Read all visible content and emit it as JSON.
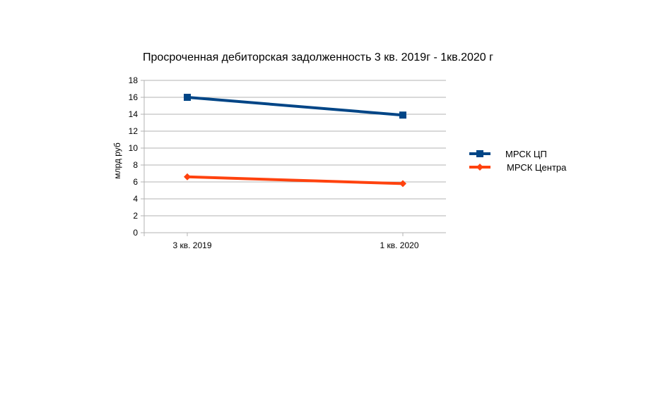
{
  "chart_data": {
    "type": "line",
    "title": "Просроченная дебиторская задолженность 3 кв. 2019г - 1кв.2020 г",
    "xlabel": "",
    "ylabel": "млрд руб",
    "categories": [
      "3 кв. 2019",
      "1 кв. 2020"
    ],
    "ylim": [
      0,
      18
    ],
    "yticks": [
      0,
      2,
      4,
      6,
      8,
      10,
      12,
      14,
      16,
      18
    ],
    "grid": true,
    "legend_position": "right",
    "series": [
      {
        "name": "МРСК ЦП",
        "values": [
          16.0,
          13.9
        ],
        "color": "#004586",
        "marker": "square"
      },
      {
        "name": "МРСК Центра",
        "values": [
          6.6,
          5.8
        ],
        "color": "#ff420e",
        "marker": "diamond"
      }
    ]
  },
  "colors": {
    "grid": "#b3b3b3",
    "axis": "#b3b3b3",
    "text": "#000000"
  }
}
